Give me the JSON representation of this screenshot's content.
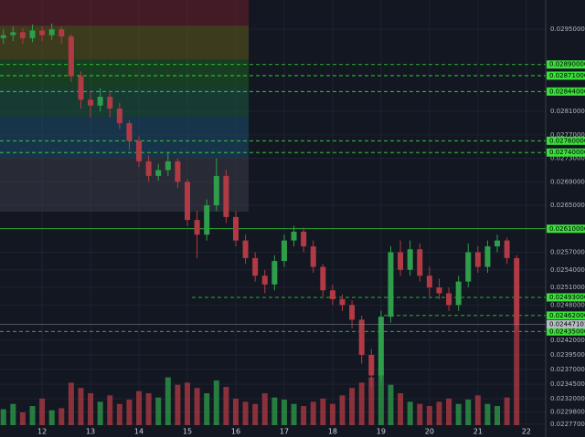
{
  "chart_data": {
    "type": "candlestick",
    "x": [
      11.2,
      11.4,
      11.6,
      11.8,
      12.0,
      12.2,
      12.4,
      12.6,
      12.8,
      13.0,
      13.2,
      13.4,
      13.6,
      13.8,
      14.0,
      14.2,
      14.4,
      14.6,
      14.8,
      15.0,
      15.2,
      15.4,
      15.6,
      15.8,
      16.0,
      16.2,
      16.4,
      16.6,
      16.8,
      17.0,
      17.2,
      17.4,
      17.6,
      17.8,
      18.0,
      18.2,
      18.4,
      18.6,
      18.8,
      19.0,
      19.2,
      19.4,
      19.6,
      19.8,
      20.0,
      20.2,
      20.4,
      20.6,
      20.8,
      21.0,
      21.2,
      21.4,
      21.6,
      21.8
    ],
    "open": [
      0.02935,
      0.0294,
      0.02945,
      0.02935,
      0.02948,
      0.0294,
      0.0295,
      0.02938,
      0.0287,
      0.0283,
      0.0282,
      0.02835,
      0.02815,
      0.0279,
      0.0276,
      0.02725,
      0.027,
      0.0271,
      0.02725,
      0.0269,
      0.02625,
      0.026,
      0.0265,
      0.027,
      0.0263,
      0.0259,
      0.0256,
      0.0253,
      0.02515,
      0.02555,
      0.0259,
      0.02605,
      0.0258,
      0.02545,
      0.02505,
      0.0249,
      0.0248,
      0.02455,
      0.02395,
      0.0236,
      0.0246,
      0.0257,
      0.0254,
      0.02575,
      0.0253,
      0.0251,
      0.025,
      0.0248,
      0.0252,
      0.0257,
      0.02545,
      0.0258,
      0.0259,
      0.0256
    ],
    "high": [
      0.0295,
      0.02955,
      0.02952,
      0.02958,
      0.02955,
      0.0296,
      0.02955,
      0.02942,
      0.02878,
      0.02845,
      0.0285,
      0.02842,
      0.02825,
      0.02795,
      0.02768,
      0.02735,
      0.0272,
      0.0274,
      0.0273,
      0.02695,
      0.0264,
      0.0266,
      0.0273,
      0.0271,
      0.0264,
      0.026,
      0.0257,
      0.0254,
      0.02565,
      0.026,
      0.02615,
      0.02612,
      0.0259,
      0.0255,
      0.02515,
      0.02498,
      0.02488,
      0.02462,
      0.02405,
      0.0247,
      0.0258,
      0.0259,
      0.0259,
      0.02585,
      0.02545,
      0.02525,
      0.0251,
      0.0253,
      0.02585,
      0.0258,
      0.0259,
      0.026,
      0.02595,
      0.02565
    ],
    "low": [
      0.02925,
      0.0293,
      0.02925,
      0.02928,
      0.0293,
      0.02932,
      0.02925,
      0.0286,
      0.02815,
      0.028,
      0.0281,
      0.028,
      0.0278,
      0.02745,
      0.02715,
      0.0269,
      0.02692,
      0.027,
      0.0268,
      0.02615,
      0.0256,
      0.0259,
      0.0264,
      0.0262,
      0.0258,
      0.0255,
      0.0252,
      0.025,
      0.02505,
      0.02545,
      0.0258,
      0.0257,
      0.02535,
      0.02495,
      0.0248,
      0.0247,
      0.0244,
      0.0238,
      0.0234,
      0.0235,
      0.0245,
      0.0253,
      0.0253,
      0.0252,
      0.02495,
      0.0249,
      0.0247,
      0.0247,
      0.0251,
      0.02535,
      0.02535,
      0.0257,
      0.0255,
      0.02435
    ],
    "close": [
      0.0294,
      0.02945,
      0.02935,
      0.02948,
      0.0294,
      0.0295,
      0.02938,
      0.0287,
      0.0283,
      0.0282,
      0.02835,
      0.02815,
      0.0279,
      0.0276,
      0.02725,
      0.027,
      0.0271,
      0.02725,
      0.0269,
      0.02625,
      0.026,
      0.0265,
      0.027,
      0.0263,
      0.0259,
      0.0256,
      0.0253,
      0.02515,
      0.02555,
      0.0259,
      0.02605,
      0.0258,
      0.02545,
      0.02505,
      0.0249,
      0.0248,
      0.02455,
      0.02395,
      0.0236,
      0.0246,
      0.0257,
      0.0254,
      0.02575,
      0.0253,
      0.0251,
      0.025,
      0.0248,
      0.0252,
      0.0257,
      0.02545,
      0.0258,
      0.0259,
      0.0256,
      0.02447
    ],
    "volume": [
      15,
      20,
      12,
      18,
      25,
      14,
      16,
      40,
      35,
      30,
      22,
      28,
      20,
      24,
      32,
      30,
      26,
      45,
      38,
      40,
      35,
      30,
      42,
      36,
      25,
      22,
      20,
      30,
      26,
      24,
      20,
      18,
      22,
      25,
      20,
      28,
      35,
      40,
      45,
      50,
      38,
      30,
      22,
      20,
      18,
      22,
      25,
      20,
      24,
      28,
      20,
      18,
      26,
      95
    ],
    "up_color": "#2e9e4a",
    "down_color": "#b23a44",
    "xlim": [
      11.13,
      22.4
    ],
    "xticks": [
      12,
      13,
      14,
      15,
      16,
      17,
      18,
      19,
      20,
      21,
      22
    ],
    "ylim": [
      0.02255,
      0.03
    ],
    "yticks": [
      {
        "value": 0.0295,
        "label": "0.02950000"
      },
      {
        "value": 0.0281,
        "label": "0.02810000"
      },
      {
        "value": 0.0277,
        "label": "0.02770000"
      },
      {
        "value": 0.0273,
        "label": "0.02730000"
      },
      {
        "value": 0.0269,
        "label": "0.02690000"
      },
      {
        "value": 0.0265,
        "label": "0.02650000"
      },
      {
        "value": 0.0257,
        "label": "0.02570000"
      },
      {
        "value": 0.0254,
        "label": "0.02540000"
      },
      {
        "value": 0.0251,
        "label": "0.02510000"
      },
      {
        "value": 0.0248,
        "label": "0.02480000"
      },
      {
        "value": 0.0242,
        "label": "0.02420000"
      },
      {
        "value": 0.02395,
        "label": "0.02395000"
      },
      {
        "value": 0.0237,
        "label": "0.02370000"
      },
      {
        "value": 0.02345,
        "label": "0.02345000"
      },
      {
        "value": 0.0232,
        "label": "0.02320000"
      },
      {
        "value": 0.02298,
        "label": "0.02298000"
      },
      {
        "value": 0.02277,
        "label": "0.02277000"
      }
    ],
    "y2lim": [
      0,
      400
    ],
    "levels": [
      {
        "value": 0.0289,
        "label": "0.02890000"
      },
      {
        "value": 0.02871,
        "label": "0.02871000"
      },
      {
        "value": 0.02844,
        "label": "0.02844000"
      },
      {
        "value": 0.0276,
        "label": "0.02760000"
      },
      {
        "value": 0.0274,
        "label": "0.02740000"
      },
      {
        "value": 0.0261,
        "label": "0.02610000"
      },
      {
        "value": 0.02493,
        "label": "0.02493000"
      },
      {
        "value": 0.02462,
        "label": "0.02462000"
      },
      {
        "value": 0.02435,
        "label": "0.02435000"
      }
    ],
    "level_color": "#3adf3a",
    "last_price": {
      "value": 0.02447101,
      "label": "0.02447101"
    },
    "grid": true
  }
}
